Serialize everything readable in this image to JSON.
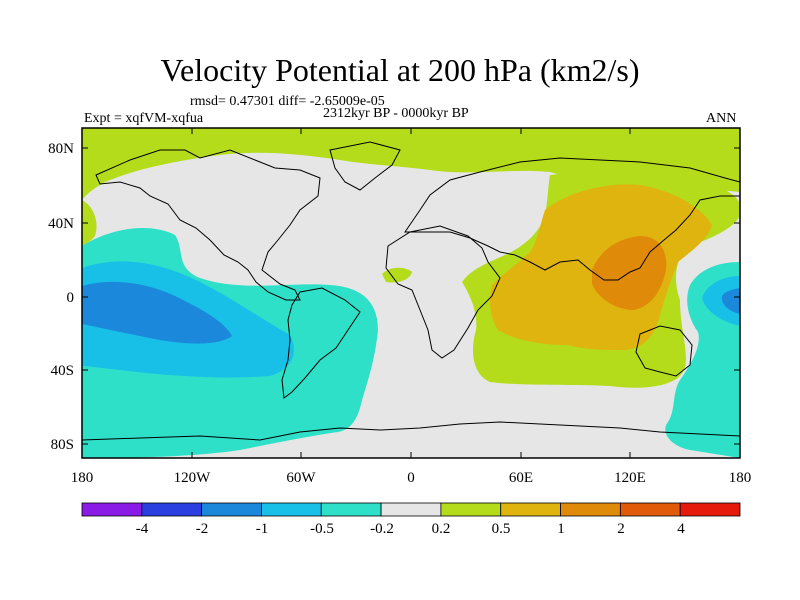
{
  "title": "Velocity Potential at 200 hPa (km2/s)",
  "stats": "rmsd= 0.47301 diff= -2.65009e-05",
  "period": "2312kyr BP - 0000kyr BP",
  "experiment": "Expt = xqfVM-xqfua",
  "season": "ANN",
  "lat_ticks": [
    "80N",
    "40N",
    "0",
    "40S",
    "80S"
  ],
  "lon_ticks": [
    "180",
    "120W",
    "60W",
    "0",
    "60E",
    "120E",
    "180"
  ],
  "colorbar": {
    "labels": [
      "-4",
      "-2",
      "-1",
      "-0.5",
      "-0.2",
      "0.2",
      "0.5",
      "1",
      "2",
      "4"
    ],
    "colors": [
      "#8a1ae6",
      "#2b3fe0",
      "#1b88dc",
      "#18c0e8",
      "#2fe0c8",
      "#e6e6e6",
      "#b4dc1a",
      "#e0b40e",
      "#e08a0a",
      "#e05a0a",
      "#e61a0a"
    ]
  },
  "region_colors": {
    "background": "#e6e6e6",
    "positive_low": "#b4dc1a",
    "positive_mid": "#e0b40e",
    "positive_high": "#e08a0a",
    "negative_low": "#2fe0c8",
    "negative_mid": "#18c0e8",
    "negative_high": "#1b88dc"
  }
}
